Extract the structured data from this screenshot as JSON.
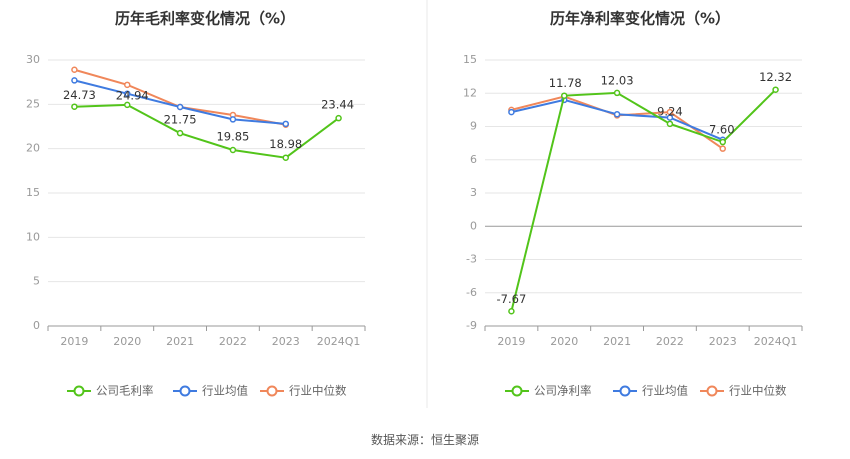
{
  "source_label": "数据来源：恒生聚源",
  "chart_data": [
    {
      "type": "line",
      "title": "历年毛利率变化情况（%）",
      "categories": [
        "2019",
        "2020",
        "2021",
        "2022",
        "2023",
        "2024Q1"
      ],
      "ylim": [
        0,
        30
      ],
      "yticks": [
        0,
        5,
        10,
        15,
        20,
        25,
        30
      ],
      "grid": true,
      "legend_position": "bottom",
      "series": [
        {
          "name": "公司毛利率",
          "color": "#52c41a",
          "values": [
            24.73,
            24.94,
            21.75,
            19.85,
            18.98,
            23.44
          ],
          "labels": [
            "24.73",
            "24.94",
            "21.75",
            "19.85",
            "18.98",
            "23.44"
          ]
        },
        {
          "name": "行业均值",
          "color": "#3f7be0",
          "values": [
            27.7,
            26.2,
            24.7,
            23.3,
            22.8,
            null
          ]
        },
        {
          "name": "行业中位数",
          "color": "#f0875a",
          "values": [
            28.9,
            27.2,
            24.7,
            23.8,
            22.7,
            null
          ]
        }
      ]
    },
    {
      "type": "line",
      "title": "历年净利率变化情况（%）",
      "categories": [
        "2019",
        "2020",
        "2021",
        "2022",
        "2023",
        "2024Q1"
      ],
      "ylim": [
        -9,
        15
      ],
      "yticks": [
        -9,
        -6,
        -3,
        0,
        3,
        6,
        9,
        12,
        15
      ],
      "grid": true,
      "legend_position": "bottom",
      "series": [
        {
          "name": "公司净利率",
          "color": "#52c41a",
          "values": [
            -7.67,
            11.78,
            12.03,
            9.24,
            7.6,
            12.32
          ],
          "labels": [
            "-7.67",
            "11.78",
            "12.03",
            "9.24",
            "7.60",
            "12.32"
          ]
        },
        {
          "name": "行业均值",
          "color": "#3f7be0",
          "values": [
            10.3,
            11.4,
            10.1,
            9.8,
            7.8,
            null
          ]
        },
        {
          "name": "行业中位数",
          "color": "#f0875a",
          "values": [
            10.5,
            11.7,
            10.0,
            10.3,
            7.0,
            null
          ]
        }
      ]
    }
  ]
}
